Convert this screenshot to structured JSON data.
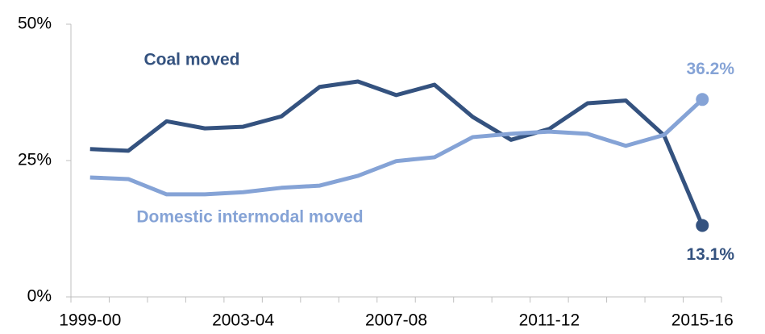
{
  "chart_data": {
    "type": "line",
    "categories": [
      "1999-00",
      null,
      null,
      null,
      "2003-04",
      null,
      null,
      null,
      "2007-08",
      null,
      null,
      null,
      "2011-12",
      null,
      null,
      null,
      "2015-16"
    ],
    "series": [
      {
        "name": "Coal moved",
        "color": "#34527f",
        "values": [
          27.1,
          26.8,
          32.2,
          30.9,
          31.2,
          33.1,
          38.5,
          39.5,
          37.0,
          38.9,
          33.0,
          28.8,
          30.8,
          35.5,
          36.0,
          29.6,
          13.1
        ],
        "value_labels": [
          null,
          null,
          null,
          null,
          null,
          null,
          null,
          null,
          null,
          null,
          null,
          null,
          null,
          null,
          null,
          null,
          "13.1%"
        ]
      },
      {
        "name": "Domestic intermodal moved",
        "color": "#85a3d6",
        "values": [
          21.9,
          21.6,
          18.8,
          18.8,
          19.2,
          20.0,
          20.4,
          22.2,
          24.9,
          25.6,
          29.3,
          29.9,
          30.3,
          29.9,
          27.7,
          29.7,
          36.2
        ],
        "value_labels": [
          null,
          null,
          null,
          null,
          null,
          null,
          null,
          null,
          null,
          null,
          null,
          null,
          null,
          null,
          null,
          null,
          "36.2%"
        ]
      }
    ],
    "ylim": [
      0,
      50
    ],
    "yticks": [
      {
        "value": 0,
        "label": "0%"
      },
      {
        "value": 25,
        "label": "25%"
      },
      {
        "value": 50,
        "label": "50%"
      }
    ]
  }
}
